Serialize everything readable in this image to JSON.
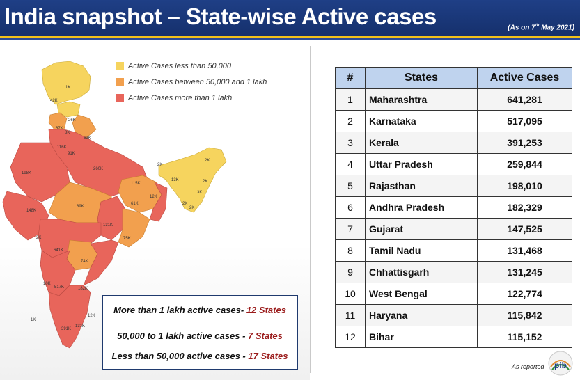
{
  "header": {
    "title": "India snapshot – State-wise Active cases",
    "date_prefix": "(As on 7",
    "date_sup": "th",
    "date_suffix": " May 2021)"
  },
  "colors": {
    "low": "#f6d45e",
    "medium": "#f2a04e",
    "high": "#e8655b",
    "header_bg": "#1f3f86",
    "table_header_bg": "#bfd3ee"
  },
  "legend": [
    {
      "label": "Active Cases less than 50,000",
      "color": "#f6d45e"
    },
    {
      "label": "Active Cases between 50,000 and 1 lakh",
      "color": "#f2a04e"
    },
    {
      "label": "Active Cases more than 1 lakh",
      "color": "#e8655b"
    }
  ],
  "map_labels": [
    "1K",
    "42K",
    "26K",
    "67K",
    "63K",
    "116K",
    "91K",
    "8K",
    "260K",
    "198K",
    "115K",
    "2K",
    "13K",
    "2K",
    "2K",
    "3K",
    "2K",
    "2K",
    "12K",
    "89K",
    "61K",
    "148K",
    "131K",
    "75K",
    "2K",
    "74K",
    "641K",
    "182K",
    "517K",
    "10K",
    "12K",
    "131K",
    "391K",
    "1K"
  ],
  "summary": {
    "line1_text": "More than 1 lakh active cases- ",
    "line1_count": "12 States",
    "line2_text": "50,000 to 1 lakh active cases - ",
    "line2_count": "7 States",
    "line3_text": "Less than 50,000 active cases - ",
    "line3_count": "17 States"
  },
  "table": {
    "headers": [
      "#",
      "States",
      "Active Cases"
    ],
    "rows": [
      {
        "n": "1",
        "state": "Maharashtra",
        "cases": "641,281"
      },
      {
        "n": "2",
        "state": "Karnataka",
        "cases": "517,095"
      },
      {
        "n": "3",
        "state": "Kerala",
        "cases": "391,253"
      },
      {
        "n": "4",
        "state": "Uttar Pradesh",
        "cases": "259,844"
      },
      {
        "n": "5",
        "state": "Rajasthan",
        "cases": "198,010"
      },
      {
        "n": "6",
        "state": "Andhra Pradesh",
        "cases": "182,329"
      },
      {
        "n": "7",
        "state": "Gujarat",
        "cases": "147,525"
      },
      {
        "n": "8",
        "state": "Tamil Nadu",
        "cases": "131,468"
      },
      {
        "n": "9",
        "state": "Chhattisgarh",
        "cases": "131,245"
      },
      {
        "n": "10",
        "state": "West Bengal",
        "cases": "122,774"
      },
      {
        "n": "11",
        "state": "Haryana",
        "cases": "115,842"
      },
      {
        "n": "12",
        "state": "Bihar",
        "cases": "115,152"
      }
    ]
  },
  "footer": {
    "reported": "As reported",
    "logo_text": "pib"
  }
}
